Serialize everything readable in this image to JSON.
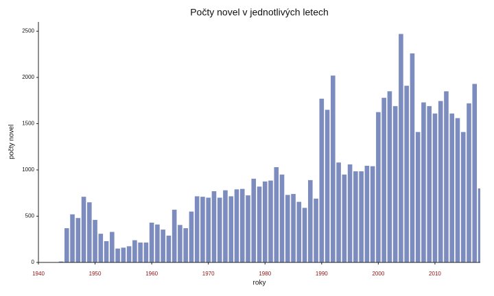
{
  "chart_data": {
    "type": "bar",
    "title": "Počty novel v jednotlivých letech",
    "xlabel": "roky",
    "ylabel": "počty novel",
    "x": [
      1944,
      1945,
      1946,
      1947,
      1948,
      1949,
      1950,
      1951,
      1952,
      1953,
      1954,
      1955,
      1956,
      1957,
      1958,
      1959,
      1960,
      1961,
      1962,
      1963,
      1964,
      1965,
      1966,
      1967,
      1968,
      1969,
      1970,
      1971,
      1972,
      1973,
      1974,
      1975,
      1976,
      1977,
      1978,
      1979,
      1980,
      1981,
      1982,
      1983,
      1984,
      1985,
      1986,
      1987,
      1988,
      1989,
      1990,
      1991,
      1992,
      1993,
      1994,
      1995,
      1996,
      1997,
      1998,
      1999,
      2000,
      2001,
      2002,
      2003,
      2004,
      2005,
      2006,
      2007,
      2008,
      2009,
      2010,
      2011,
      2012,
      2013,
      2014,
      2015,
      2016,
      2017,
      2018
    ],
    "values": [
      10,
      370,
      520,
      480,
      710,
      650,
      460,
      310,
      230,
      330,
      150,
      160,
      175,
      240,
      215,
      215,
      430,
      410,
      355,
      290,
      570,
      405,
      370,
      550,
      715,
      710,
      700,
      770,
      700,
      780,
      715,
      790,
      795,
      725,
      905,
      820,
      875,
      885,
      1030,
      950,
      730,
      740,
      655,
      590,
      890,
      690,
      1770,
      1650,
      2020,
      1080,
      950,
      1060,
      985,
      985,
      1045,
      1040,
      1625,
      1780,
      1850,
      1690,
      2470,
      1910,
      2260,
      1410,
      1730,
      1690,
      1610,
      1745,
      1850,
      1610,
      1560,
      1410,
      1720,
      1930,
      800
    ],
    "color": "#7d8cbf",
    "xlim": [
      1940,
      2018
    ],
    "xticks": [
      1940,
      1950,
      1960,
      1970,
      1980,
      1990,
      2000,
      2010
    ],
    "ylim": [
      0,
      2600
    ],
    "yticks": [
      0,
      500,
      1000,
      1500,
      2000,
      2500
    ]
  }
}
